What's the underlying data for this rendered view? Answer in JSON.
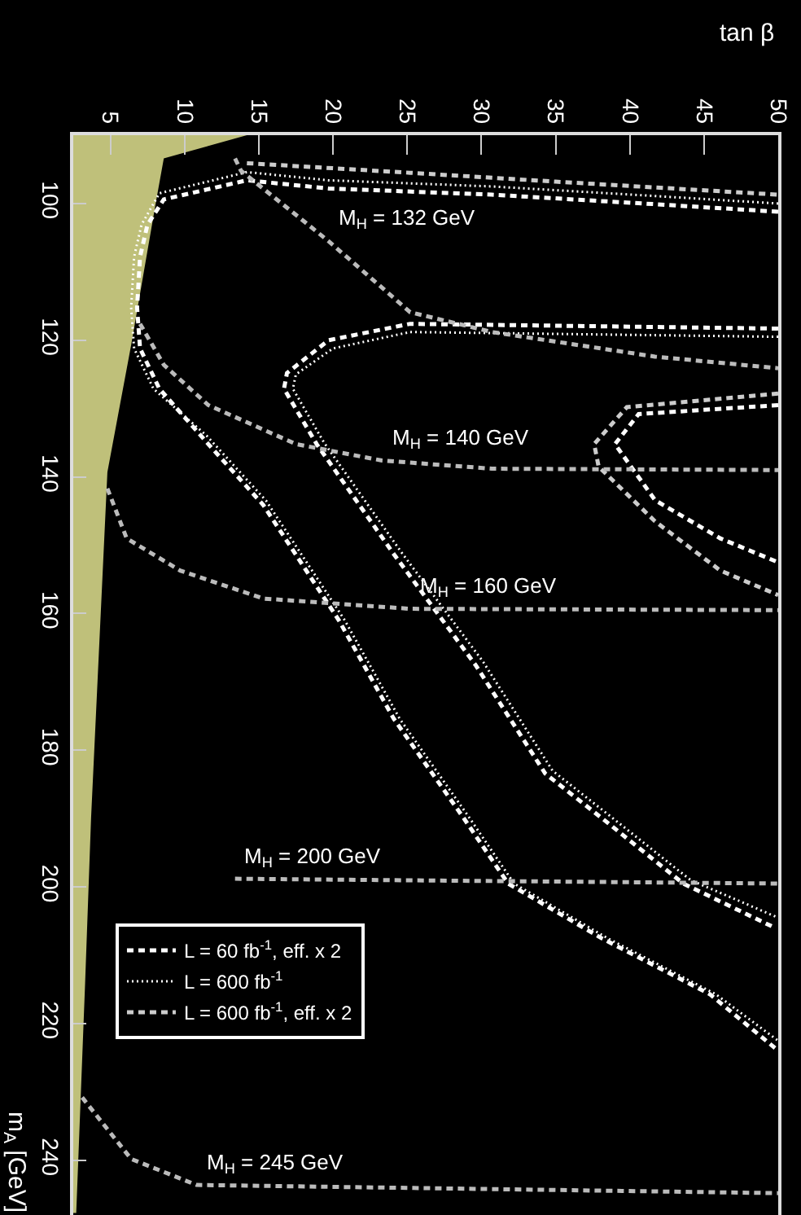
{
  "chart_data": {
    "type": "line",
    "xlabel": "tan β",
    "ylabel": "m$_{A}$ [GeV]",
    "xlim": [
      2.5,
      50
    ],
    "xticks": [
      5,
      10,
      15,
      20,
      25,
      30,
      35,
      40,
      45,
      50
    ],
    "ylim": [
      248,
      90
    ],
    "yticks": [
      100,
      120,
      140,
      160,
      180,
      200,
      220,
      240
    ],
    "grid": false,
    "legend": "bottom left",
    "series": [
      {
        "type": "area",
        "color": "#bfc07a",
        "x": [
          14.2,
          8.6,
          8.1,
          6.4,
          4.8,
          3.7,
          3.3,
          2.7
        ],
        "values": [
          90,
          93.4,
          99.4,
          120.7,
          139.3,
          189.9,
          214,
          247.7
        ]
      },
      {
        "name": "L = 60 fb$^{-1}$, eff. x 2",
        "color": "#ffffff",
        "line_style": "dashed",
        "x": [
          50,
          41.7,
          30.7,
          19.7,
          14.2,
          8.6,
          7.5,
          7.0,
          6.8,
          7.0,
          8.3,
          11.6,
          15.3,
          20.4,
          24.1,
          28.8,
          31.8,
          38.1,
          45.4,
          49.8
        ],
        "values": [
          101.2,
          100.1,
          98.7,
          97.8,
          96.6,
          99.4,
          103.1,
          107.8,
          115.2,
          121.2,
          127.1,
          135.2,
          144.1,
          161,
          175.4,
          189.9,
          199.5,
          207.5,
          215.7,
          223.6
        ]
      },
      {
        "name": "L = 600 fb$^{-1}$",
        "color": "#ffffff",
        "line_style": "dotted",
        "x": [
          50,
          41.7,
          30.7,
          19.7,
          14.2,
          8.3,
          7.1,
          6.6,
          6.4,
          6.6,
          7.9,
          11.5,
          15.5,
          20.8,
          24.5,
          29.2,
          32.2,
          38.5,
          45.8,
          50
        ],
        "values": [
          100,
          98.9,
          97.5,
          96.6,
          95.4,
          98.5,
          103.1,
          107.8,
          115.2,
          121.2,
          127.1,
          134,
          143.5,
          161,
          175.4,
          189.9,
          199.5,
          207.5,
          215.7,
          222.5
        ]
      },
      {
        "name": "L = 600 fb$^{-1}$, eff. x 2",
        "color": "#cccccc",
        "line_style": "dashed",
        "x": [
          14.2,
          25.2,
          35,
          50
        ],
        "values": [
          94.1,
          95.5,
          96.8,
          98.7
        ]
      },
      {
        "color": "#ffffff",
        "line_style": "dashed",
        "x": [
          50,
          25.2,
          19.7,
          16.9,
          16.7,
          18.9,
          24.1,
          29.6,
          34.3,
          38.1,
          43.6,
          49.8
        ],
        "values": [
          118.3,
          117.6,
          120,
          124.8,
          127.1,
          135.2,
          151.3,
          167.5,
          183.4,
          189.9,
          199.5,
          206
        ]
      },
      {
        "color": "#ffffff",
        "line_style": "dotted",
        "x": [
          50,
          25.2,
          20,
          17.5,
          17.3,
          19.4,
          24.6,
          30.1,
          34.8,
          38.6,
          44.1,
          50
        ],
        "values": [
          119.5,
          118.8,
          121.2,
          125,
          127.1,
          135,
          151,
          167,
          183,
          189.5,
          199,
          204.5
        ]
      },
      {
        "color": "#ffffff",
        "line_style": "dashed",
        "x": [
          50,
          40.6,
          39,
          41.7,
          46.1,
          50
        ],
        "values": [
          129.5,
          130.8,
          135.2,
          143.4,
          149,
          152.5
        ]
      },
      {
        "color": "#cccccc",
        "line_style": "dashed",
        "x": [
          50,
          39.8,
          37.6,
          37.9,
          41.7,
          46.1,
          50
        ],
        "values": [
          127.8,
          129.8,
          135.2,
          138.5,
          146.5,
          153.7,
          157.3
        ]
      },
      {
        "color": "#bbbbbb",
        "line_style": "dashed",
        "x": [
          13.4,
          13.8,
          19.7,
          25.2,
          30.7,
          41.7,
          50
        ],
        "values": [
          93.4,
          95.2,
          105.5,
          115.9,
          118.8,
          122.4,
          124.1
        ]
      },
      {
        "color": "#bbbbbb",
        "line_style": "dashed",
        "x": [
          7,
          8.6,
          11.6,
          17.5,
          23.3,
          30.7,
          50
        ],
        "values": [
          117.6,
          123.6,
          129.5,
          135.2,
          137.6,
          138.8,
          139
        ]
      },
      {
        "color": "#bbbbbb",
        "line_style": "dashed",
        "x": [
          4.8,
          6.1,
          9.7,
          15.3,
          25.2,
          50
        ],
        "values": [
          141.7,
          149,
          153.7,
          157.8,
          159.3,
          159.5
        ]
      },
      {
        "color": "#bbbbbb",
        "line_style": "dashed",
        "x": [
          13.4,
          50
        ],
        "values": [
          198.8,
          199.5
        ]
      },
      {
        "color": "#bbbbbb",
        "line_style": "dashed",
        "x": [
          3.1,
          6.4,
          10.8,
          50
        ],
        "values": [
          230.8,
          239.8,
          243.6,
          244.8
        ]
      }
    ],
    "annotations": [
      {
        "text": "M$_{H}$ = 132 GeV",
        "x": 19.7,
        "y": 105.5
      },
      {
        "text": "M$_{H}$ = 140 GeV",
        "x": 23.3,
        "y": 137.6
      },
      {
        "text": "M$_{H}$ = 160 GeV",
        "x": 25.2,
        "y": 159.3
      },
      {
        "text": "M$_{H}$ = 200 GeV",
        "x": 13.4,
        "y": 198.8
      },
      {
        "text": "M$_{H}$ = 245 GeV",
        "x": 10.8,
        "y": 243.6
      }
    ]
  }
}
